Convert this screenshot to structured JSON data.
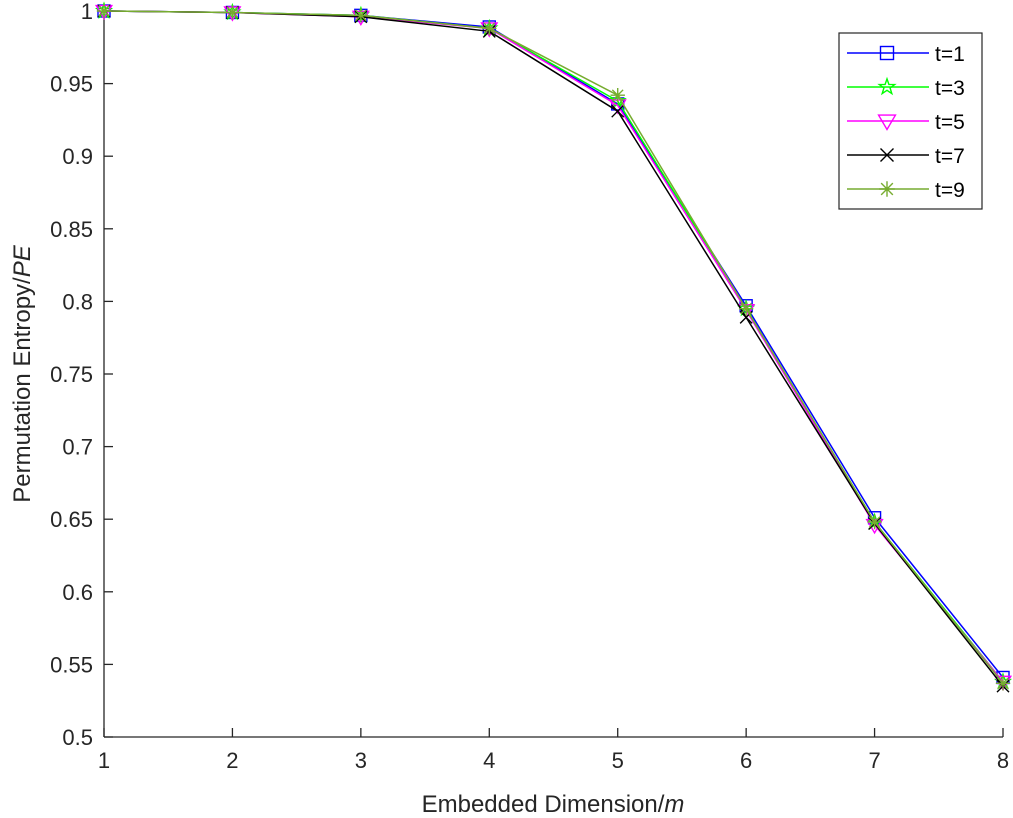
{
  "chart_data": {
    "type": "line",
    "title": "",
    "xlabel": "Embedded Dimension/",
    "xlabel_italic": "m",
    "ylabel": "Permutation Entropy/",
    "ylabel_italic": "PE",
    "x": [
      1,
      2,
      3,
      4,
      5,
      6,
      7,
      8
    ],
    "xlim": [
      1,
      8
    ],
    "ylim": [
      0.5,
      1
    ],
    "xticks": [
      "1",
      "2",
      "3",
      "4",
      "5",
      "6",
      "7",
      "8"
    ],
    "yticks": [
      "0.5",
      "0.55",
      "0.6",
      "0.65",
      "0.7",
      "0.75",
      "0.8",
      "0.85",
      "0.9",
      "0.95",
      "1"
    ],
    "grid": false,
    "legend_position": "northeast",
    "series": [
      {
        "name": "t=1",
        "color": "#0000ff",
        "marker": "square",
        "values": [
          1.0,
          0.999,
          0.997,
          0.989,
          0.936,
          0.797,
          0.651,
          0.541
        ]
      },
      {
        "name": "t=3",
        "color": "#00ff00",
        "marker": "pentagram",
        "values": [
          1.0,
          0.999,
          0.997,
          0.988,
          0.938,
          0.795,
          0.648,
          0.538
        ]
      },
      {
        "name": "t=5",
        "color": "#ff00ff",
        "marker": "triangle-down",
        "values": [
          1.0,
          0.999,
          0.996,
          0.988,
          0.935,
          0.794,
          0.646,
          0.538
        ]
      },
      {
        "name": "t=7",
        "color": "#000000",
        "marker": "x",
        "values": [
          1.0,
          0.999,
          0.996,
          0.986,
          0.931,
          0.789,
          0.647,
          0.535
        ]
      },
      {
        "name": "t=9",
        "color": "#77ac30",
        "marker": "asterisk",
        "values": [
          1.0,
          0.999,
          0.997,
          0.988,
          0.942,
          0.795,
          0.648,
          0.537
        ]
      }
    ]
  }
}
